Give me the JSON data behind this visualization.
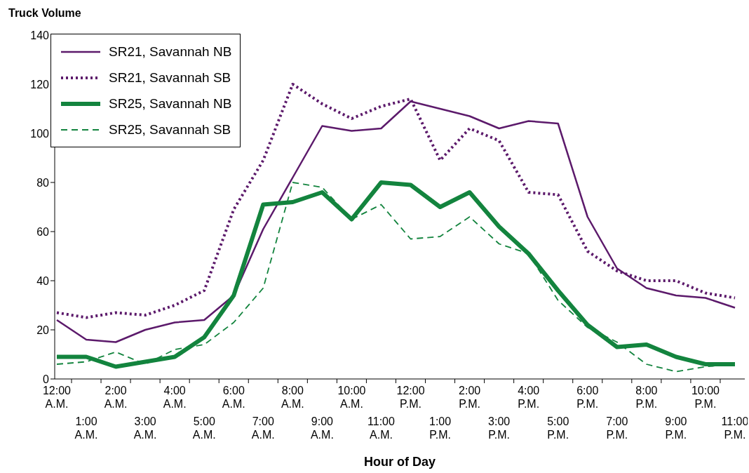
{
  "chart_data": {
    "type": "line",
    "ylabel": "Truck Volume",
    "xlabel": "Hour of Day",
    "categories": [
      "12:00 A.M.",
      "1:00 A.M.",
      "2:00 A.M.",
      "3:00 A.M.",
      "4:00 A.M.",
      "5:00 A.M.",
      "6:00 A.M.",
      "7:00 A.M.",
      "8:00 A.M.",
      "9:00 A.M.",
      "10:00 A.M.",
      "11:00 A.M.",
      "12:00 P.M.",
      "1:00 P.M.",
      "2:00 P.M.",
      "3:00 P.M.",
      "4:00 P.M.",
      "5:00 P.M.",
      "6:00 P.M.",
      "7:00 P.M.",
      "8:00 P.M.",
      "9:00 P.M.",
      "10:00 P.M.",
      "11:00 P.M."
    ],
    "series": [
      {
        "name": "SR21, Savannah NB",
        "color": "#5c1a6b",
        "line_style": "solid",
        "values": [
          24,
          16,
          15,
          20,
          23,
          24,
          34,
          61,
          82,
          103,
          101,
          102,
          113,
          110,
          107,
          102,
          105,
          104,
          66,
          45,
          37,
          34,
          33,
          29
        ]
      },
      {
        "name": "SR21, Savannah SB",
        "color": "#5c1a6b",
        "line_style": "dotted",
        "values": [
          27,
          25,
          27,
          26,
          30,
          36,
          69,
          89,
          120,
          112,
          106,
          111,
          114,
          89,
          102,
          97,
          76,
          75,
          52,
          44,
          40,
          40,
          35,
          33
        ]
      },
      {
        "name": "SR25, Savannah NB",
        "color": "#13843e",
        "line_style": "solid",
        "values": [
          9,
          9,
          5,
          7,
          9,
          17,
          34,
          71,
          72,
          76,
          65,
          80,
          79,
          70,
          76,
          62,
          51,
          36,
          22,
          13,
          14,
          9,
          6,
          6
        ]
      },
      {
        "name": "SR25, Savannah SB",
        "color": "#13843e",
        "line_style": "dashed",
        "values": [
          6,
          7,
          11,
          6,
          12,
          14,
          23,
          37,
          80,
          78,
          65,
          71,
          57,
          58,
          66,
          55,
          51,
          32,
          21,
          15,
          6,
          3,
          5,
          6
        ]
      }
    ],
    "ylim": [
      0,
      140
    ],
    "yticks": [
      0,
      20,
      40,
      60,
      80,
      100,
      120,
      140
    ],
    "grid": false,
    "legend": "top left",
    "marker": "none"
  }
}
